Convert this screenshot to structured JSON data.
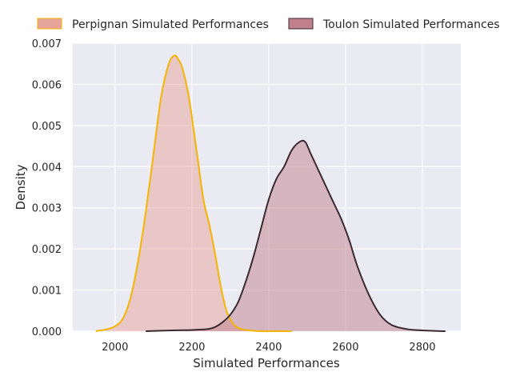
{
  "chart_data": {
    "type": "area",
    "xlabel": "Simulated Performances",
    "ylabel": "Density",
    "xlim": [
      1890,
      2900
    ],
    "ylim": [
      0,
      0.007
    ],
    "xticks": [
      2000,
      2200,
      2400,
      2600,
      2800
    ],
    "yticks": [
      0.0,
      0.001,
      0.002,
      0.003,
      0.004,
      0.005,
      0.006,
      0.007
    ],
    "ytick_labels": [
      "0.000",
      "0.001",
      "0.002",
      "0.003",
      "0.004",
      "0.005",
      "0.006",
      "0.007"
    ],
    "xtick_labels": [
      "2000",
      "2200",
      "2400",
      "2600",
      "2800"
    ],
    "grid": true,
    "legend_position": "top",
    "series": [
      {
        "name": "Perpignan Simulated Performances",
        "fill_color": "#e6a49a",
        "line_color": "#f4b400",
        "x": [
          1950,
          1980,
          2000,
          2020,
          2040,
          2060,
          2080,
          2100,
          2120,
          2140,
          2155,
          2165,
          2175,
          2190,
          2200,
          2215,
          2230,
          2245,
          2260,
          2275,
          2290,
          2310,
          2330,
          2350,
          2380,
          2420,
          2460
        ],
        "y": [
          0.0,
          5e-05,
          0.00012,
          0.0003,
          0.0008,
          0.0017,
          0.0029,
          0.0043,
          0.0057,
          0.0065,
          0.0067,
          0.0066,
          0.0064,
          0.0058,
          0.0052,
          0.0042,
          0.0032,
          0.0026,
          0.0019,
          0.0011,
          0.0005,
          0.00015,
          5e-05,
          2e-05,
          0.0,
          0.0,
          0.0
        ]
      },
      {
        "name": "Toulon Simulated Performances",
        "fill_color": "#c0808c",
        "line_color": "#3a2a30",
        "x": [
          2080,
          2150,
          2200,
          2240,
          2260,
          2280,
          2300,
          2320,
          2340,
          2360,
          2380,
          2400,
          2420,
          2440,
          2460,
          2480,
          2495,
          2510,
          2530,
          2550,
          2570,
          2590,
          2610,
          2630,
          2660,
          2690,
          2720,
          2760,
          2800,
          2860
        ],
        "y": [
          0.0,
          2e-05,
          3e-05,
          5e-05,
          0.0001,
          0.00022,
          0.0004,
          0.0007,
          0.0012,
          0.0018,
          0.0025,
          0.0032,
          0.0037,
          0.004,
          0.0044,
          0.0046,
          0.0046,
          0.0043,
          0.0039,
          0.0035,
          0.0031,
          0.0027,
          0.0022,
          0.0016,
          0.0009,
          0.0004,
          0.00015,
          5e-05,
          2e-05,
          0.0
        ]
      }
    ]
  }
}
